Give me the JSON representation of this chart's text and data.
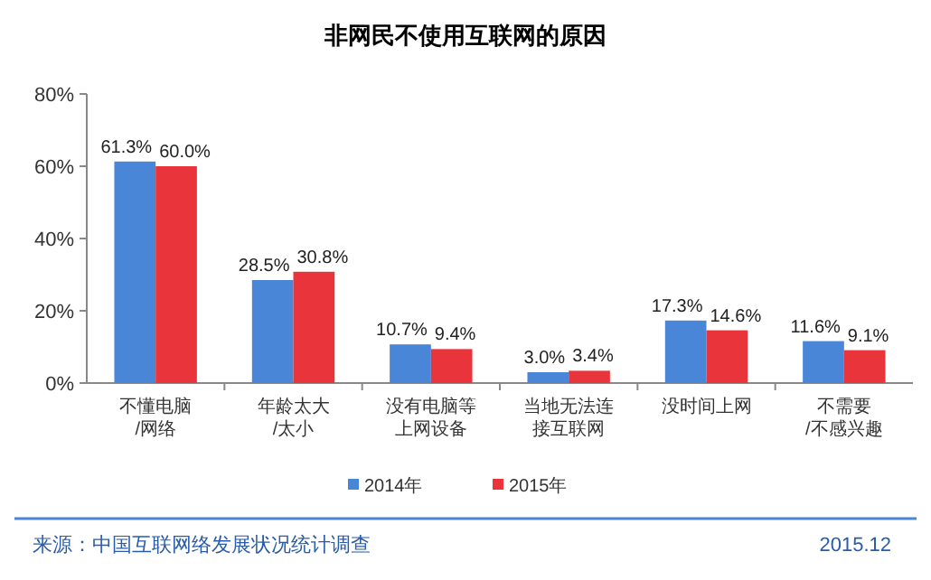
{
  "chart_data": {
    "type": "bar",
    "title": "非网民不使用互联网的原因",
    "categories": [
      "不懂电脑/网络",
      "年龄太大/太小",
      "没有电脑等上网设备",
      "当地无法连接互联网",
      "没时间上网",
      "不需要/不感兴趣"
    ],
    "series": [
      {
        "name": "2014年",
        "color": "#4a86d8",
        "values": [
          61.3,
          28.5,
          10.7,
          3.0,
          17.3,
          11.6
        ],
        "value_labels": [
          "61.3%",
          "28.5%",
          "10.7%",
          "3.0%",
          "17.3%",
          "11.6%"
        ]
      },
      {
        "name": "2015年",
        "color": "#e8343a",
        "values": [
          60.0,
          30.8,
          9.4,
          3.4,
          14.6,
          9.1
        ],
        "value_labels": [
          "60.0%",
          "30.8%",
          "9.4%",
          "3.4%",
          "14.6%",
          "9.1%"
        ]
      }
    ],
    "ylim": [
      0,
      80
    ],
    "yticks": [
      {
        "value": 0,
        "label": "0%"
      },
      {
        "value": 20,
        "label": "20%"
      },
      {
        "value": 40,
        "label": "40%"
      },
      {
        "value": 60,
        "label": "60%"
      },
      {
        "value": 80,
        "label": "80%"
      }
    ],
    "grid": false,
    "legend": "bottom",
    "annotations": [
      "来源：中国互联网络发展状况统计调查",
      "2015.12"
    ]
  }
}
